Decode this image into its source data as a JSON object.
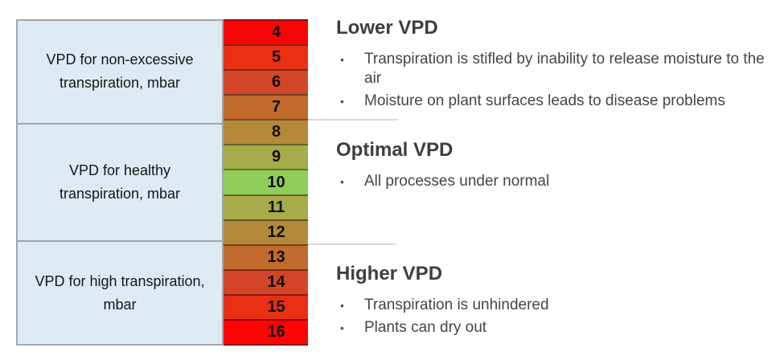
{
  "bullet_char": "•",
  "colors": {
    "label_bg": "#DEE9F3",
    "table_border": "#9DA7AE",
    "divider": "#D9D9D9",
    "heading_text": "#3E3E3E",
    "body_text": "#454545",
    "number_text": "#101010"
  },
  "table": {
    "sections": [
      {
        "rows": 4,
        "lines": [
          "VPD for non-excessive",
          "transpiration, mbar"
        ]
      },
      {
        "rows": 5,
        "lines": [
          "VPD for healthy",
          "transpiration, mbar"
        ]
      },
      {
        "rows": 4,
        "lines": [
          "VPD for high transpiration,",
          "mbar"
        ]
      }
    ],
    "scale": [
      {
        "value": "4",
        "color": "#FD0404"
      },
      {
        "value": "5",
        "color": "#E93014"
      },
      {
        "value": "6",
        "color": "#D24528"
      },
      {
        "value": "7",
        "color": "#C16B2F"
      },
      {
        "value": "8",
        "color": "#B48A3A"
      },
      {
        "value": "9",
        "color": "#A6AC49"
      },
      {
        "value": "10",
        "color": "#8FCE58"
      },
      {
        "value": "11",
        "color": "#A6AC49"
      },
      {
        "value": "12",
        "color": "#B48A3A"
      },
      {
        "value": "13",
        "color": "#C16B2F"
      },
      {
        "value": "14",
        "color": "#D24528"
      },
      {
        "value": "15",
        "color": "#E93014"
      },
      {
        "value": "16",
        "color": "#FD0404"
      }
    ]
  },
  "sections": [
    {
      "heading": "Lower VPD",
      "bullets": [
        "Transpiration is stifled by inability to release moisture to the air",
        "Moisture on plant surfaces leads to disease problems"
      ]
    },
    {
      "heading": "Optimal VPD",
      "bullets": [
        "All processes under normal"
      ]
    },
    {
      "heading": "Higher VPD",
      "bullets": [
        "Transpiration is unhindered",
        "Plants can dry out"
      ]
    }
  ],
  "chart_data": {
    "type": "heatmap",
    "values": [
      4,
      5,
      6,
      7,
      8,
      9,
      10,
      11,
      12,
      13,
      14,
      15,
      16
    ],
    "cell_colors": [
      "#FD0404",
      "#E93014",
      "#D24528",
      "#C16B2F",
      "#B48A3A",
      "#A6AC49",
      "#8FCE58",
      "#A6AC49",
      "#B48A3A",
      "#C16B2F",
      "#D24528",
      "#E93014",
      "#FD0404"
    ],
    "unit": "mbar",
    "row_groups": [
      {
        "label": "VPD for non-excessive transpiration, mbar",
        "values": [
          4,
          5,
          6,
          7
        ],
        "annotation_heading": "Lower VPD"
      },
      {
        "label": "VPD for healthy transpiration, mbar",
        "values": [
          8,
          9,
          10,
          11,
          12
        ],
        "annotation_heading": "Optimal VPD"
      },
      {
        "label": "VPD for high transpiration, mbar",
        "values": [
          13,
          14,
          15,
          16
        ],
        "annotation_heading": "Higher VPD"
      }
    ],
    "legend_position": "right",
    "grid": false
  }
}
